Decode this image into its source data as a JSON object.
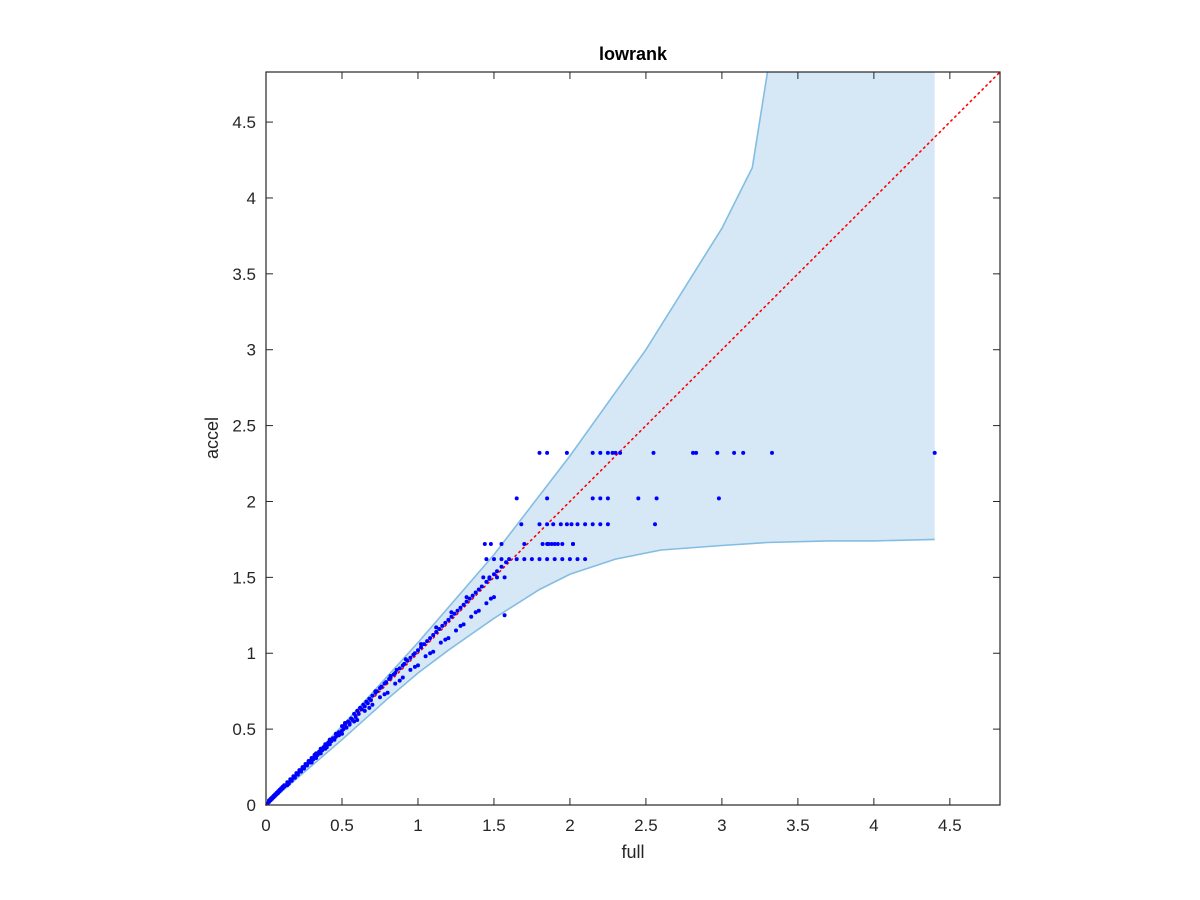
{
  "chart_data": {
    "type": "scatter",
    "title": "lowrank",
    "xlabel": "full",
    "ylabel": "accel",
    "xlim": [
      0,
      4.83
    ],
    "ylim": [
      0,
      4.83
    ],
    "xticks": [
      0,
      0.5,
      1,
      1.5,
      2,
      2.5,
      3,
      3.5,
      4,
      4.5
    ],
    "yticks": [
      0,
      0.5,
      1,
      1.5,
      2,
      2.5,
      3,
      3.5,
      4,
      4.5
    ],
    "xtick_labels": [
      "0",
      "0.5",
      "1",
      "1.5",
      "2",
      "2.5",
      "3",
      "3.5",
      "4",
      "4.5"
    ],
    "ytick_labels": [
      "0",
      "0.5",
      "1",
      "1.5",
      "2",
      "2.5",
      "3",
      "3.5",
      "4",
      "4.5"
    ],
    "grid": false,
    "reference_line": {
      "slope": 1,
      "color": "#ff0000",
      "style": "dotted"
    },
    "band": {
      "fill_color": "#d6e8f5",
      "edge_color": "#84bde2",
      "upper": {
        "x": [
          0,
          0.5,
          1.0,
          1.5,
          2.0,
          2.5,
          3.0,
          3.2,
          3.3
        ],
        "y": [
          0,
          0.52,
          1.07,
          1.65,
          2.3,
          3.0,
          3.8,
          4.2,
          4.83
        ]
      },
      "upper_clip_x": 3.3,
      "lower": {
        "x": [
          0,
          0.5,
          0.8,
          1.0,
          1.2,
          1.5,
          1.8,
          2.0,
          2.3,
          2.6,
          3.0,
          3.3,
          3.7,
          4.0,
          4.4
        ],
        "y": [
          0,
          0.43,
          0.7,
          0.87,
          1.02,
          1.23,
          1.42,
          1.52,
          1.62,
          1.68,
          1.71,
          1.73,
          1.74,
          1.74,
          1.75
        ]
      },
      "x_end": 4.4
    },
    "series": [
      {
        "marker_color": "#0000ff",
        "points": {
          "x": [
            0.01,
            0.02,
            0.02,
            0.03,
            0.03,
            0.04,
            0.04,
            0.05,
            0.05,
            0.06,
            0.06,
            0.07,
            0.07,
            0.08,
            0.08,
            0.09,
            0.09,
            0.1,
            0.1,
            0.11,
            0.11,
            0.12,
            0.12,
            0.13,
            0.14,
            0.14,
            0.15,
            0.16,
            0.16,
            0.17,
            0.18,
            0.18,
            0.19,
            0.2,
            0.2,
            0.21,
            0.22,
            0.22,
            0.23,
            0.24,
            0.24,
            0.25,
            0.26,
            0.26,
            0.27,
            0.28,
            0.28,
            0.29,
            0.3,
            0.3,
            0.31,
            0.32,
            0.33,
            0.33,
            0.34,
            0.35,
            0.36,
            0.36,
            0.37,
            0.38,
            0.39,
            0.39,
            0.4,
            0.41,
            0.42,
            0.42,
            0.43,
            0.44,
            0.45,
            0.46,
            0.46,
            0.47,
            0.48,
            0.49,
            0.5,
            0.5,
            0.51,
            0.52,
            0.53,
            0.54,
            0.55,
            0.56,
            0.57,
            0.58,
            0.59,
            0.6,
            0.61,
            0.62,
            0.63,
            0.64,
            0.65,
            0.66,
            0.67,
            0.68,
            0.69,
            0.7,
            0.72,
            0.73,
            0.75,
            0.76,
            0.78,
            0.79,
            0.81,
            0.82,
            0.84,
            0.85,
            0.86,
            0.88,
            0.9,
            0.91,
            0.93,
            0.95,
            0.97,
            0.98,
            1.0,
            1.02,
            1.04,
            1.06,
            1.08,
            1.1,
            1.12,
            1.14,
            1.16,
            1.18,
            1.2,
            1.22,
            1.24,
            1.26,
            1.28,
            1.3,
            1.32,
            1.34,
            1.36,
            1.38,
            1.4,
            1.42,
            1.45,
            1.47,
            1.5,
            1.52,
            1.55,
            1.58,
            0.3,
            0.4,
            0.5,
            0.6,
            0.7,
            0.8,
            0.9,
            1.0,
            1.1,
            1.2,
            1.3,
            1.4,
            1.5,
            0.25,
            0.35,
            0.45,
            0.55,
            0.65,
            0.75,
            0.85,
            0.95,
            1.05,
            1.15,
            1.25,
            1.35,
            1.45,
            0.2,
            0.32,
            0.42,
            0.52,
            0.62,
            0.72,
            0.82,
            0.92,
            1.02,
            1.12,
            1.22,
            1.32,
            0.38,
            0.48,
            0.58,
            0.68,
            0.78,
            0.88,
            0.98,
            1.08,
            1.18,
            1.28,
            1.38,
            1.48,
            1.57,
            1.43,
            1.47,
            1.52,
            1.57,
            1.45,
            1.5,
            1.55,
            1.6,
            1.65,
            1.7,
            1.75,
            1.8,
            1.85,
            1.9,
            1.95,
            2.0,
            2.05,
            2.1,
            1.44,
            1.48,
            1.55,
            1.7,
            1.82,
            1.86,
            1.9,
            1.95,
            2.02,
            1.68,
            1.8,
            1.85,
            1.89,
            1.94,
            1.98,
            2.01,
            2.05,
            2.1,
            2.15,
            2.2,
            2.25,
            2.56,
            1.85,
            1.88,
            1.92,
            2.02,
            1.65,
            1.85,
            2.15,
            2.2,
            2.25,
            2.45,
            2.57,
            2.98,
            1.8,
            1.85,
            1.98,
            2.15,
            2.2,
            2.25,
            2.28,
            2.3,
            2.33,
            2.55,
            2.81,
            2.83,
            2.97,
            3.08,
            3.14,
            3.33,
            4.4
          ],
          "y": [
            0.01,
            0.02,
            0.03,
            0.03,
            0.04,
            0.04,
            0.05,
            0.05,
            0.06,
            0.06,
            0.07,
            0.07,
            0.08,
            0.08,
            0.09,
            0.09,
            0.1,
            0.1,
            0.11,
            0.11,
            0.12,
            0.12,
            0.13,
            0.13,
            0.13,
            0.15,
            0.14,
            0.16,
            0.17,
            0.16,
            0.18,
            0.19,
            0.18,
            0.2,
            0.21,
            0.2,
            0.22,
            0.23,
            0.22,
            0.24,
            0.25,
            0.24,
            0.26,
            0.27,
            0.26,
            0.28,
            0.29,
            0.28,
            0.3,
            0.31,
            0.3,
            0.32,
            0.31,
            0.34,
            0.33,
            0.35,
            0.34,
            0.37,
            0.36,
            0.38,
            0.37,
            0.4,
            0.39,
            0.41,
            0.4,
            0.43,
            0.42,
            0.44,
            0.43,
            0.45,
            0.47,
            0.46,
            0.48,
            0.47,
            0.49,
            0.52,
            0.5,
            0.53,
            0.51,
            0.55,
            0.54,
            0.57,
            0.56,
            0.6,
            0.58,
            0.62,
            0.6,
            0.64,
            0.63,
            0.66,
            0.65,
            0.68,
            0.67,
            0.7,
            0.69,
            0.72,
            0.74,
            0.75,
            0.77,
            0.78,
            0.8,
            0.81,
            0.83,
            0.84,
            0.86,
            0.87,
            0.89,
            0.9,
            0.92,
            0.93,
            0.95,
            0.97,
            0.99,
            1.0,
            1.02,
            1.04,
            1.06,
            1.08,
            1.1,
            1.12,
            1.14,
            1.16,
            1.18,
            1.2,
            1.22,
            1.24,
            1.26,
            1.28,
            1.3,
            1.32,
            1.34,
            1.36,
            1.38,
            1.4,
            1.42,
            1.44,
            1.47,
            1.49,
            1.52,
            1.54,
            1.57,
            1.6,
            0.28,
            0.38,
            0.47,
            0.56,
            0.66,
            0.74,
            0.84,
            0.92,
            1.01,
            1.1,
            1.19,
            1.28,
            1.37,
            0.25,
            0.35,
            0.44,
            0.53,
            0.62,
            0.71,
            0.8,
            0.89,
            0.98,
            1.07,
            1.15,
            1.24,
            1.33,
            0.2,
            0.33,
            0.43,
            0.54,
            0.64,
            0.75,
            0.85,
            0.96,
            1.06,
            1.17,
            1.27,
            1.37,
            0.37,
            0.46,
            0.55,
            0.64,
            0.73,
            0.82,
            0.91,
            1.0,
            1.09,
            1.18,
            1.27,
            1.36,
            1.25,
            1.5,
            1.5,
            1.5,
            1.5,
            1.62,
            1.62,
            1.62,
            1.62,
            1.62,
            1.62,
            1.62,
            1.62,
            1.62,
            1.62,
            1.62,
            1.62,
            1.62,
            1.62,
            1.72,
            1.72,
            1.72,
            1.72,
            1.72,
            1.72,
            1.72,
            1.72,
            1.72,
            1.85,
            1.85,
            1.85,
            1.85,
            1.85,
            1.85,
            1.85,
            1.85,
            1.85,
            1.85,
            1.85,
            1.85,
            1.85,
            1.72,
            1.72,
            1.72,
            1.72,
            2.02,
            2.02,
            2.02,
            2.02,
            2.02,
            2.02,
            2.02,
            2.02,
            2.32,
            2.32,
            2.32,
            2.32,
            2.32,
            2.32,
            2.32,
            2.32,
            2.32,
            2.32,
            2.32,
            2.32,
            2.32,
            2.32,
            2.32,
            2.32,
            2.32
          ]
        }
      }
    ]
  }
}
